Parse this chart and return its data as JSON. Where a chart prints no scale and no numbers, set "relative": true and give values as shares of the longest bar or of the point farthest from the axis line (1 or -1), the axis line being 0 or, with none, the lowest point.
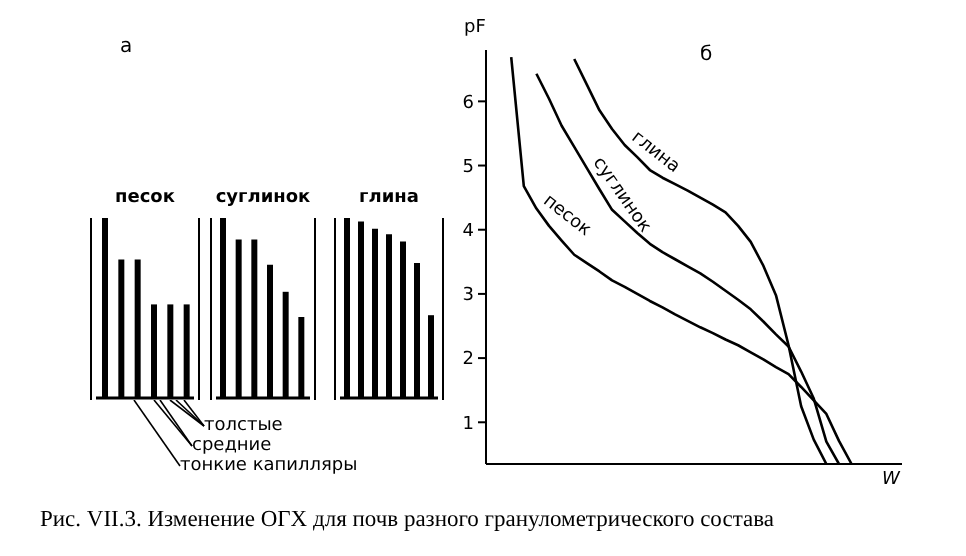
{
  "chart_data": [
    {
      "type": "bar",
      "title": "песок",
      "relative": true,
      "categories": [
        null,
        null,
        null,
        null,
        null,
        null
      ],
      "values": [
        1,
        0.77,
        0.77,
        0.52,
        0.52,
        0.52
      ],
      "color": "#000000",
      "annotations": [
        "а",
        "толстые",
        "средние",
        "тонкие капилляры"
      ]
    },
    {
      "type": "bar",
      "title": "суглинок",
      "relative": true,
      "categories": [
        null,
        null,
        null,
        null,
        null,
        null
      ],
      "values": [
        1,
        0.88,
        0.88,
        0.74,
        0.59,
        0.45
      ],
      "color": "#000000"
    },
    {
      "type": "bar",
      "title": "глина",
      "relative": true,
      "categories": [
        null,
        null,
        null,
        null,
        null,
        null,
        null
      ],
      "values": [
        1,
        0.98,
        0.94,
        0.91,
        0.87,
        0.75,
        0.46
      ],
      "color": "#000000"
    },
    {
      "type": "line",
      "title": "б",
      "xlabel": "W",
      "ylabel": "pF",
      "ylim": [
        0.35,
        6.8
      ],
      "yticks": [
        1,
        2,
        3,
        4,
        5,
        6
      ],
      "tick_labels": "y",
      "annotations": [
        "Рис. VII.3. Изменение ОГХ для почв разного гранулометрического состава"
      ],
      "categories": [
        null,
        null,
        null,
        null,
        null,
        null,
        null,
        null,
        null,
        null,
        null,
        null,
        null,
        null,
        null,
        null,
        null,
        null,
        null,
        null,
        null,
        null,
        null,
        null,
        null,
        null,
        null,
        null,
        null,
        null,
        null,
        null,
        null,
        null
      ],
      "series": [
        {
          "name": "песок",
          "color": "#000000",
          "values": [
            null,
            null,
            6.69,
            4.68,
            4.33,
            4.06,
            3.83,
            3.61,
            3.48,
            3.35,
            3.21,
            3.11,
            3.0,
            2.89,
            2.79,
            2.68,
            2.58,
            2.48,
            2.39,
            2.29,
            2.2,
            2.09,
            1.98,
            1.86,
            1.75,
            1.55,
            1.34,
            1.13,
            0.71,
            0.35,
            null,
            null,
            null,
            null
          ]
        },
        {
          "name": "суглинок",
          "color": "#000000",
          "values": [
            null,
            null,
            null,
            null,
            6.43,
            6.04,
            5.62,
            5.29,
            4.96,
            4.63,
            4.31,
            4.13,
            3.95,
            3.78,
            3.65,
            3.54,
            3.43,
            3.32,
            3.19,
            3.05,
            2.91,
            2.76,
            2.57,
            2.37,
            2.18,
            1.79,
            1.37,
            0.7,
            0.35,
            null,
            null,
            null,
            null,
            null
          ]
        },
        {
          "name": "глина",
          "color": "#000000",
          "values": [
            null,
            null,
            null,
            null,
            null,
            null,
            null,
            6.66,
            6.26,
            5.86,
            5.57,
            5.32,
            5.13,
            4.93,
            4.81,
            4.71,
            4.61,
            4.5,
            4.39,
            4.27,
            4.06,
            3.81,
            3.44,
            2.98,
            2.2,
            1.25,
            0.73,
            0.35,
            null,
            null,
            null,
            null,
            null,
            null
          ]
        }
      ]
    }
  ]
}
